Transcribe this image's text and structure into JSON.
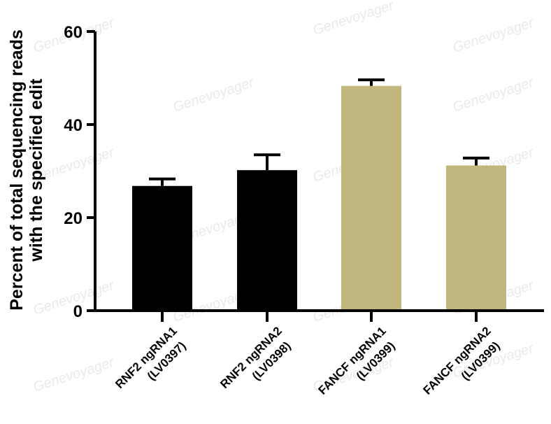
{
  "chart_data": {
    "type": "bar",
    "categories": [
      [
        "RNF2 ngRNA1",
        "(LV0397)"
      ],
      [
        "RNF2 ngRNA2",
        "(LV0398)"
      ],
      [
        "FANCF ngRNA1",
        "(LV0399)"
      ],
      [
        "FANCF ngRNA2",
        "(LV0399)"
      ]
    ],
    "values": [
      26.8,
      30.2,
      48.3,
      31.2
    ],
    "errors": [
      1.5,
      3.3,
      1.3,
      1.6
    ],
    "bar_colors": [
      "#000000",
      "#000000",
      "#c1b77e",
      "#c1b77e"
    ],
    "ylabel_lines": [
      "Percent of total sequencing reads",
      "with the specified edit"
    ],
    "xlabel": "",
    "title": "",
    "ylim": [
      0,
      60
    ],
    "yticks": [
      0,
      20,
      40,
      60
    ],
    "grid": false,
    "watermark": "Genevoyager"
  }
}
